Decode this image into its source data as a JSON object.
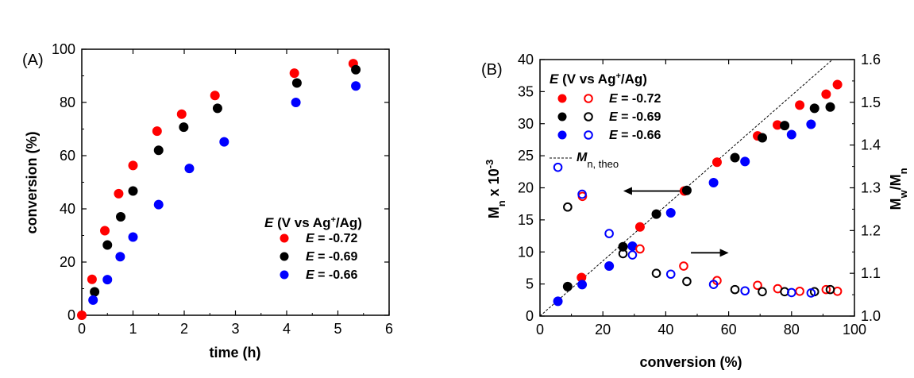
{
  "colors": {
    "red": "#ff0000",
    "black": "#000000",
    "blue": "#0000ff"
  },
  "chart_data": [
    {
      "panel": "(A)",
      "type": "scatter",
      "xlabel": "time (h)",
      "ylabel": "conversion (%)",
      "xlim": [
        0,
        6
      ],
      "ylim": [
        0,
        100
      ],
      "xticks": [
        "0",
        "1",
        "2",
        "3",
        "4",
        "5",
        "6"
      ],
      "yticks": [
        "0",
        "20",
        "40",
        "60",
        "80",
        "100"
      ],
      "legend": {
        "title": "E (V vs Ag+/Ag)",
        "position": "center-right",
        "entries": [
          "E = -0.72",
          "E = -0.69",
          "E = -0.66"
        ]
      },
      "series": [
        {
          "name": "E = -0.72",
          "color": "#ff0000",
          "points": [
            [
              0,
              0
            ],
            [
              0.2,
              13.5
            ],
            [
              0.45,
              31.8
            ],
            [
              0.72,
              45.7
            ],
            [
              1.0,
              56.3
            ],
            [
              1.47,
              69.2
            ],
            [
              1.95,
              75.6
            ],
            [
              2.6,
              82.6
            ],
            [
              4.15,
              91
            ],
            [
              5.3,
              94.6
            ]
          ]
        },
        {
          "name": "E = -0.69",
          "color": "#000000",
          "points": [
            [
              0.25,
              8.8
            ],
            [
              0.5,
              26.4
            ],
            [
              0.76,
              37
            ],
            [
              1.0,
              46.7
            ],
            [
              1.5,
              62
            ],
            [
              1.99,
              70.7
            ],
            [
              2.65,
              77.8
            ],
            [
              4.2,
              87.3
            ],
            [
              5.35,
              92.3
            ]
          ]
        },
        {
          "name": "E = -0.66",
          "color": "#0000ff",
          "points": [
            [
              0.22,
              5.7
            ],
            [
              0.5,
              13.4
            ],
            [
              0.75,
              22
            ],
            [
              1.0,
              29.4
            ],
            [
              1.5,
              41.6
            ],
            [
              2.1,
              55.2
            ],
            [
              2.78,
              65.2
            ],
            [
              4.18,
              80
            ],
            [
              5.35,
              86.2
            ]
          ]
        }
      ]
    },
    {
      "panel": "(B)",
      "type": "scatter",
      "xlabel": "conversion (%)",
      "ylabel_left": "Mn x 10-3",
      "ylabel_right": "Mw/Mn",
      "xlim": [
        0,
        100
      ],
      "ylim_left": [
        0,
        40
      ],
      "ylim_right": [
        1.0,
        1.6
      ],
      "xticks": [
        "0",
        "20",
        "40",
        "60",
        "80",
        "100"
      ],
      "yticks_left": [
        "0",
        "5",
        "10",
        "15",
        "20",
        "25",
        "30",
        "35",
        "40"
      ],
      "yticks_right": [
        "1.0",
        "1.1",
        "1.2",
        "1.3",
        "1.4",
        "1.5",
        "1.6"
      ],
      "legend": {
        "title": "E (V vs Ag+/Ag)",
        "position": "top-left",
        "entries": [
          "E = -0.72",
          "E = -0.69",
          "E = -0.66"
        ],
        "line_entry": "Mn, theo"
      },
      "theoretical_line": [
        [
          0,
          0
        ],
        [
          100,
          43
        ]
      ],
      "series": [
        {
          "name": "E = -0.72",
          "color": "#ff0000",
          "marker": "filled",
          "axis": "left",
          "points": [
            [
              13.2,
              6
            ],
            [
              31.8,
              13.9
            ],
            [
              45.9,
              19.5
            ],
            [
              56.3,
              24
            ],
            [
              69.2,
              28.1
            ],
            [
              75.5,
              29.8
            ],
            [
              82.6,
              32.9
            ],
            [
              91,
              34.6
            ],
            [
              94.6,
              36.1
            ]
          ]
        },
        {
          "name": "E = -0.69",
          "color": "#000000",
          "marker": "filled",
          "axis": "left",
          "points": [
            [
              8.8,
              4.6
            ],
            [
              26.4,
              10.8
            ],
            [
              37,
              15.9
            ],
            [
              46.7,
              19.6
            ],
            [
              62,
              24.7
            ],
            [
              70.7,
              27.8
            ],
            [
              77.8,
              29.7
            ],
            [
              87.3,
              32.4
            ],
            [
              92.3,
              32.6
            ]
          ]
        },
        {
          "name": "E = -0.66",
          "color": "#0000ff",
          "marker": "filled",
          "axis": "left",
          "points": [
            [
              5.7,
              2.3
            ],
            [
              13.4,
              4.9
            ],
            [
              22,
              7.8
            ],
            [
              29.4,
              10.9
            ],
            [
              41.6,
              16.1
            ],
            [
              55.2,
              20.8
            ],
            [
              65.2,
              24.1
            ],
            [
              80,
              28.3
            ],
            [
              86.2,
              29.9
            ]
          ]
        },
        {
          "name": "E = -0.72",
          "color": "#ff0000",
          "marker": "open",
          "axis": "right",
          "points": [
            [
              13.5,
              1.28
            ],
            [
              31.8,
              1.157
            ],
            [
              45.7,
              1.117
            ],
            [
              56.3,
              1.083
            ],
            [
              69.2,
              1.072
            ],
            [
              75.6,
              1.064
            ],
            [
              82.6,
              1.058
            ],
            [
              91,
              1.062
            ],
            [
              94.6,
              1.058
            ]
          ]
        },
        {
          "name": "E = -0.69",
          "color": "#000000",
          "marker": "open",
          "axis": "right",
          "points": [
            [
              8.8,
              1.255
            ],
            [
              26.4,
              1.146
            ],
            [
              37,
              1.1
            ],
            [
              46.7,
              1.081
            ],
            [
              62,
              1.062
            ],
            [
              70.7,
              1.057
            ],
            [
              77.8,
              1.057
            ],
            [
              87.3,
              1.057
            ],
            [
              92.3,
              1.062
            ]
          ]
        },
        {
          "name": "E = -0.66",
          "color": "#0000ff",
          "marker": "open",
          "axis": "right",
          "points": [
            [
              5.7,
              1.348
            ],
            [
              13.4,
              1.285
            ],
            [
              22,
              1.193
            ],
            [
              29.4,
              1.143
            ],
            [
              41.6,
              1.098
            ],
            [
              55.2,
              1.074
            ],
            [
              65.2,
              1.059
            ],
            [
              80,
              1.055
            ],
            [
              86.2,
              1.054
            ]
          ]
        }
      ],
      "annotations": [
        {
          "arrow": "left",
          "target_axis": "left"
        },
        {
          "arrow": "right",
          "target_axis": "right"
        }
      ]
    }
  ]
}
